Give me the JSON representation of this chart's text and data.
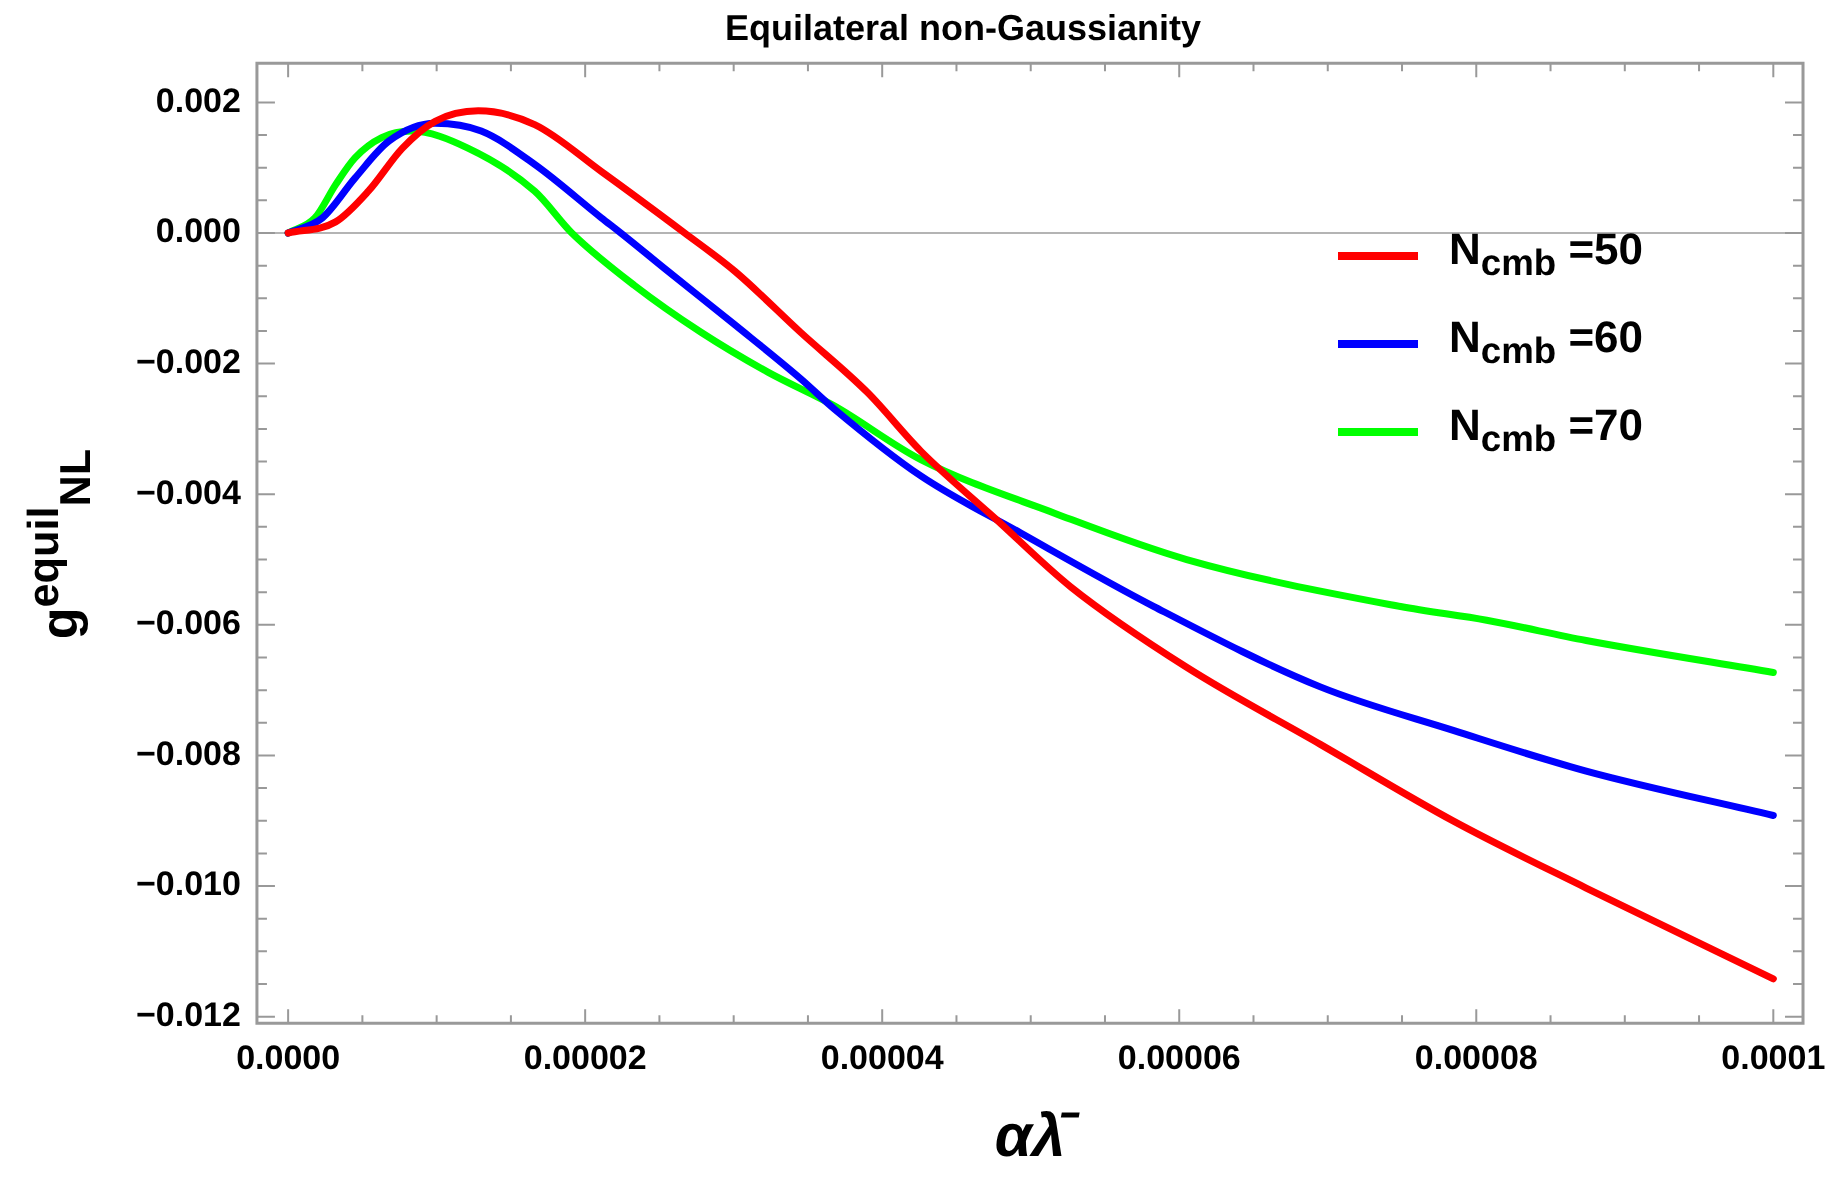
{
  "chart_data": {
    "type": "line",
    "title": "Equilateral non-Gaussianity",
    "xlabel": "αλ̄",
    "ylabel": "g$^{equil}$$_{NL}$",
    "xlim": [
      -2.1e-06,
      0.000102
    ],
    "ylim": [
      -0.0121,
      0.0026
    ],
    "xticks": [
      {
        "value": 0,
        "label": "0.0000"
      },
      {
        "value": 5e-06,
        "label": null
      },
      {
        "value": 1e-05,
        "label": null
      },
      {
        "value": 1.5e-05,
        "label": null
      },
      {
        "value": 2e-05,
        "label": "0.00002"
      },
      {
        "value": 2.5e-05,
        "label": null
      },
      {
        "value": 3e-05,
        "label": null
      },
      {
        "value": 3.5e-05,
        "label": null
      },
      {
        "value": 4e-05,
        "label": "0.00004"
      },
      {
        "value": 4.5e-05,
        "label": null
      },
      {
        "value": 5e-05,
        "label": null
      },
      {
        "value": 5.5e-05,
        "label": null
      },
      {
        "value": 6e-05,
        "label": "0.00006"
      },
      {
        "value": 6.5e-05,
        "label": null
      },
      {
        "value": 7e-05,
        "label": null
      },
      {
        "value": 7.5e-05,
        "label": null
      },
      {
        "value": 8e-05,
        "label": "0.00008"
      },
      {
        "value": 8.5e-05,
        "label": null
      },
      {
        "value": 9e-05,
        "label": null
      },
      {
        "value": 9.5e-05,
        "label": null
      },
      {
        "value": 0.0001,
        "label": "0.0001"
      }
    ],
    "yticks": [
      {
        "value": 0.002,
        "label": "0.002"
      },
      {
        "value": 0.0015,
        "label": null
      },
      {
        "value": 0.001,
        "label": null
      },
      {
        "value": 0.0005,
        "label": null
      },
      {
        "value": 0,
        "label": "0.000"
      },
      {
        "value": -0.0005,
        "label": null
      },
      {
        "value": -0.001,
        "label": null
      },
      {
        "value": -0.0015,
        "label": null
      },
      {
        "value": -0.002,
        "label": "−0.002"
      },
      {
        "value": -0.0025,
        "label": null
      },
      {
        "value": -0.003,
        "label": null
      },
      {
        "value": -0.0035,
        "label": null
      },
      {
        "value": -0.004,
        "label": "−0.004"
      },
      {
        "value": -0.0045,
        "label": null
      },
      {
        "value": -0.005,
        "label": null
      },
      {
        "value": -0.0055,
        "label": null
      },
      {
        "value": -0.006,
        "label": "−0.006"
      },
      {
        "value": -0.0065,
        "label": null
      },
      {
        "value": -0.007,
        "label": null
      },
      {
        "value": -0.0075,
        "label": null
      },
      {
        "value": -0.008,
        "label": "−0.008"
      },
      {
        "value": -0.0085,
        "label": null
      },
      {
        "value": -0.009,
        "label": null
      },
      {
        "value": -0.0095,
        "label": null
      },
      {
        "value": -0.01,
        "label": "−0.010"
      },
      {
        "value": -0.0105,
        "label": null
      },
      {
        "value": -0.011,
        "label": null
      },
      {
        "value": -0.0115,
        "label": null
      },
      {
        "value": -0.012,
        "label": "−0.012"
      }
    ],
    "grid": false,
    "legend": "top right",
    "marker": "none",
    "line_style": "solid",
    "ref_lines": [
      {
        "axis": "y",
        "value": 0,
        "label": null,
        "color": "#b4b4b4"
      }
    ],
    "series": [
      {
        "name": "N$_{cmb}$ =50",
        "color": "#ff0000",
        "x": [
          0,
          3.2e-06,
          5.4e-06,
          7.7e-06,
          9.9e-06,
          1.28e-05,
          1.66e-05,
          2.11e-05,
          2.67e-05,
          3.01e-05,
          3.45e-05,
          3.9e-05,
          4.26e-05,
          4.76e-05,
          5.27e-05,
          6.05e-05,
          6.95e-05,
          7.85e-05,
          8.74e-05,
          0.0001
        ],
        "values": [
          0,
          0.00017,
          0.00064,
          0.0013,
          0.00171,
          0.00187,
          0.00166,
          0.00094,
          0,
          -0.00059,
          -0.00152,
          -0.00244,
          -0.00334,
          -0.00437,
          -0.00542,
          -0.00665,
          -0.00783,
          -0.00901,
          -0.01003,
          -0.01142
        ]
      },
      {
        "name": "N$_{cmb}$ =60",
        "color": "#0000ff",
        "x": [
          0,
          2.3e-06,
          4.5e-06,
          6.8e-06,
          9.9e-06,
          1.3e-05,
          1.66e-05,
          2.11e-05,
          2.24e-05,
          2.56e-05,
          3.01e-05,
          3.45e-05,
          3.68e-05,
          4.26e-05,
          4.93e-05,
          5.83e-05,
          6.95e-05,
          7.85e-05,
          8.74e-05,
          0.0001
        ],
        "values": [
          0,
          0.00023,
          0.00084,
          0.00141,
          0.00168,
          0.00156,
          0.00105,
          0.00023,
          0,
          -0.00059,
          -0.00141,
          -0.00223,
          -0.0027,
          -0.00372,
          -0.00459,
          -0.00572,
          -0.00695,
          -0.00762,
          -0.00824,
          -0.00892
        ]
      },
      {
        "name": "N$_{cmb}$ =70",
        "color": "#00ff00",
        "x": [
          0,
          1.8e-06,
          3.2e-06,
          4.5e-06,
          6.3e-06,
          8.3e-06,
          1.21e-05,
          1.66e-05,
          1.91e-05,
          2.33e-05,
          2.78e-05,
          3.23e-05,
          3.68e-05,
          4.26e-05,
          5.16e-05,
          6.05e-05,
          7.49e-05,
          8.07e-05,
          8.74e-05,
          0.0001
        ],
        "values": [
          0,
          0.00023,
          0.00074,
          0.00115,
          0.00146,
          0.00156,
          0.0013,
          0.00064,
          0,
          -0.0008,
          -0.00152,
          -0.00213,
          -0.00265,
          -0.00347,
          -0.00429,
          -0.005,
          -0.00572,
          -0.00593,
          -0.00624,
          -0.00673
        ]
      }
    ]
  }
}
